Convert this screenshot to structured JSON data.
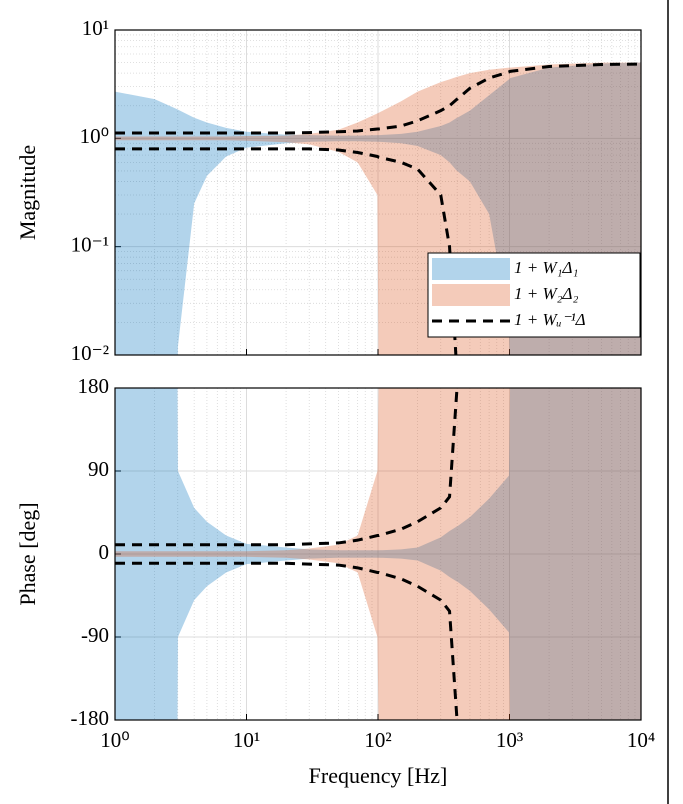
{
  "chart_data": [
    {
      "type": "area",
      "ylabel": "Magnitude",
      "xlog": true,
      "ylog": true,
      "grid": true,
      "legend": "southeast",
      "xtick_labels": false,
      "xlim": [
        1,
        10000
      ],
      "xticks": [
        1,
        10,
        100,
        1000,
        10000
      ],
      "ylim": [
        0.01,
        10
      ],
      "yticks": [
        {
          "value": 0.01,
          "label": "10⁻²"
        },
        {
          "value": 0.1,
          "label": "10⁻¹"
        },
        {
          "value": 1,
          "label": "10⁰"
        },
        {
          "value": 10,
          "label": "10¹"
        }
      ],
      "x": [
        1,
        2,
        2.99,
        3.01,
        4,
        5,
        7,
        10,
        20,
        30,
        50,
        70,
        99,
        101,
        150,
        200,
        300,
        350,
        399,
        401,
        500,
        700,
        990,
        1010,
        2000,
        5000,
        10000
      ],
      "series": [
        {
          "name": "1 + W₁Δ₁",
          "color": "#0072bd",
          "style": "band",
          "upper": [
            2.7,
            2.3,
            1.85,
            1.84,
            1.55,
            1.4,
            1.25,
            1.15,
            1.08,
            1.07,
            1.06,
            1.06,
            1.07,
            1.07,
            1.1,
            1.15,
            1.3,
            1.4,
            1.55,
            1.55,
            1.8,
            2.5,
            3.5,
            3.6,
            4.5,
            4.9,
            5
          ],
          "lower": [
            0,
            0,
            0,
            0.012,
            0.25,
            0.45,
            0.68,
            0.82,
            0.9,
            0.93,
            0.94,
            0.94,
            0.93,
            0.93,
            0.9,
            0.85,
            0.7,
            0.6,
            0.5,
            0.5,
            0.4,
            0.2,
            0.02,
            0,
            0,
            0,
            0
          ]
        },
        {
          "name": "1 + W₂Δ₂",
          "color": "#d95319",
          "style": "band",
          "upper": [
            1.04,
            1.04,
            1.04,
            1.04,
            1.04,
            1.04,
            1.04,
            1.05,
            1.06,
            1.1,
            1.2,
            1.4,
            1.7,
            1.72,
            2.2,
            2.7,
            3.3,
            3.5,
            3.7,
            3.7,
            4.0,
            4.3,
            4.5,
            4.5,
            4.8,
            5,
            5
          ],
          "lower": [
            0.96,
            0.96,
            0.96,
            0.96,
            0.96,
            0.96,
            0.96,
            0.95,
            0.92,
            0.88,
            0.75,
            0.6,
            0.3,
            0,
            0,
            0,
            0,
            0,
            0,
            0,
            0,
            0,
            0,
            0,
            0,
            0,
            0
          ]
        },
        {
          "name": "1 + Wᵤ⁻¹Δ",
          "color": "#000000",
          "style": "dashed",
          "upper": [
            1.12,
            1.12,
            1.12,
            1.12,
            1.12,
            1.12,
            1.12,
            1.12,
            1.12,
            1.13,
            1.15,
            1.17,
            1.22,
            1.22,
            1.3,
            1.45,
            1.8,
            2.0,
            2.3,
            2.3,
            2.9,
            3.6,
            4.1,
            4.15,
            4.6,
            4.8,
            4.85
          ],
          "lower": [
            0.8,
            0.8,
            0.8,
            0.8,
            0.8,
            0.8,
            0.8,
            0.8,
            0.8,
            0.8,
            0.78,
            0.74,
            0.68,
            0.67,
            0.6,
            0.52,
            0.3,
            0.1,
            0,
            null,
            null,
            null,
            null,
            null,
            null,
            null,
            null
          ]
        }
      ]
    },
    {
      "type": "area",
      "ylabel": "Phase [deg]",
      "xlabel": "Frequency [Hz]",
      "xlog": true,
      "ylog": false,
      "grid": true,
      "xlim": [
        1,
        10000
      ],
      "xticks": [
        {
          "value": 1,
          "label": "10⁰"
        },
        {
          "value": 10,
          "label": "10¹"
        },
        {
          "value": 100,
          "label": "10²"
        },
        {
          "value": 1000,
          "label": "10³"
        },
        {
          "value": 10000,
          "label": "10⁴"
        }
      ],
      "ylim": [
        -180,
        180
      ],
      "yticks": [
        -180,
        -90,
        0,
        90,
        180
      ],
      "x": [
        1,
        2,
        2.99,
        3.01,
        4,
        5,
        7,
        10,
        20,
        30,
        50,
        70,
        99,
        101,
        150,
        200,
        300,
        350,
        399,
        401,
        500,
        700,
        990,
        1010,
        2000,
        5000,
        10000
      ],
      "series": [
        {
          "color": "#0072bd",
          "style": "band",
          "upper": [
            180,
            180,
            180,
            90,
            50,
            35,
            20,
            11,
            7,
            5,
            4,
            4,
            4,
            4,
            5,
            7,
            18,
            25,
            30,
            30,
            40,
            60,
            85,
            180,
            180,
            180,
            180
          ],
          "lower": [
            -180,
            -180,
            -180,
            -90,
            -50,
            -35,
            -20,
            -11,
            -7,
            -5,
            -4,
            -4,
            -4,
            -4,
            -5,
            -7,
            -18,
            -25,
            -30,
            -30,
            -40,
            -60,
            -85,
            -180,
            -180,
            -180,
            -180
          ]
        },
        {
          "color": "#d95319",
          "style": "band",
          "upper": [
            3,
            3,
            3,
            3,
            3,
            3,
            3,
            3,
            4,
            6,
            10,
            20,
            90,
            180,
            180,
            180,
            180,
            180,
            180,
            180,
            180,
            180,
            180,
            180,
            180,
            180,
            180
          ],
          "lower": [
            -3,
            -3,
            -3,
            -3,
            -3,
            -3,
            -3,
            -3,
            -4,
            -6,
            -10,
            -20,
            -90,
            -180,
            -180,
            -180,
            -180,
            -180,
            -180,
            -180,
            -180,
            -180,
            -180,
            -180,
            -180,
            -180,
            -180
          ]
        },
        {
          "color": "#000000",
          "style": "dashed",
          "upper": [
            10,
            10,
            10,
            10,
            10,
            10,
            10,
            10,
            10,
            11,
            12,
            15,
            20,
            20,
            27,
            35,
            50,
            62,
            180,
            null,
            null,
            null,
            null,
            null,
            null,
            null,
            null
          ],
          "lower": [
            -10,
            -10,
            -10,
            -10,
            -10,
            -10,
            -10,
            -10,
            -10,
            -11,
            -12,
            -15,
            -20,
            -20,
            -27,
            -35,
            -50,
            -62,
            -180,
            null,
            null,
            null,
            null,
            null,
            null,
            null,
            null
          ]
        }
      ]
    }
  ]
}
